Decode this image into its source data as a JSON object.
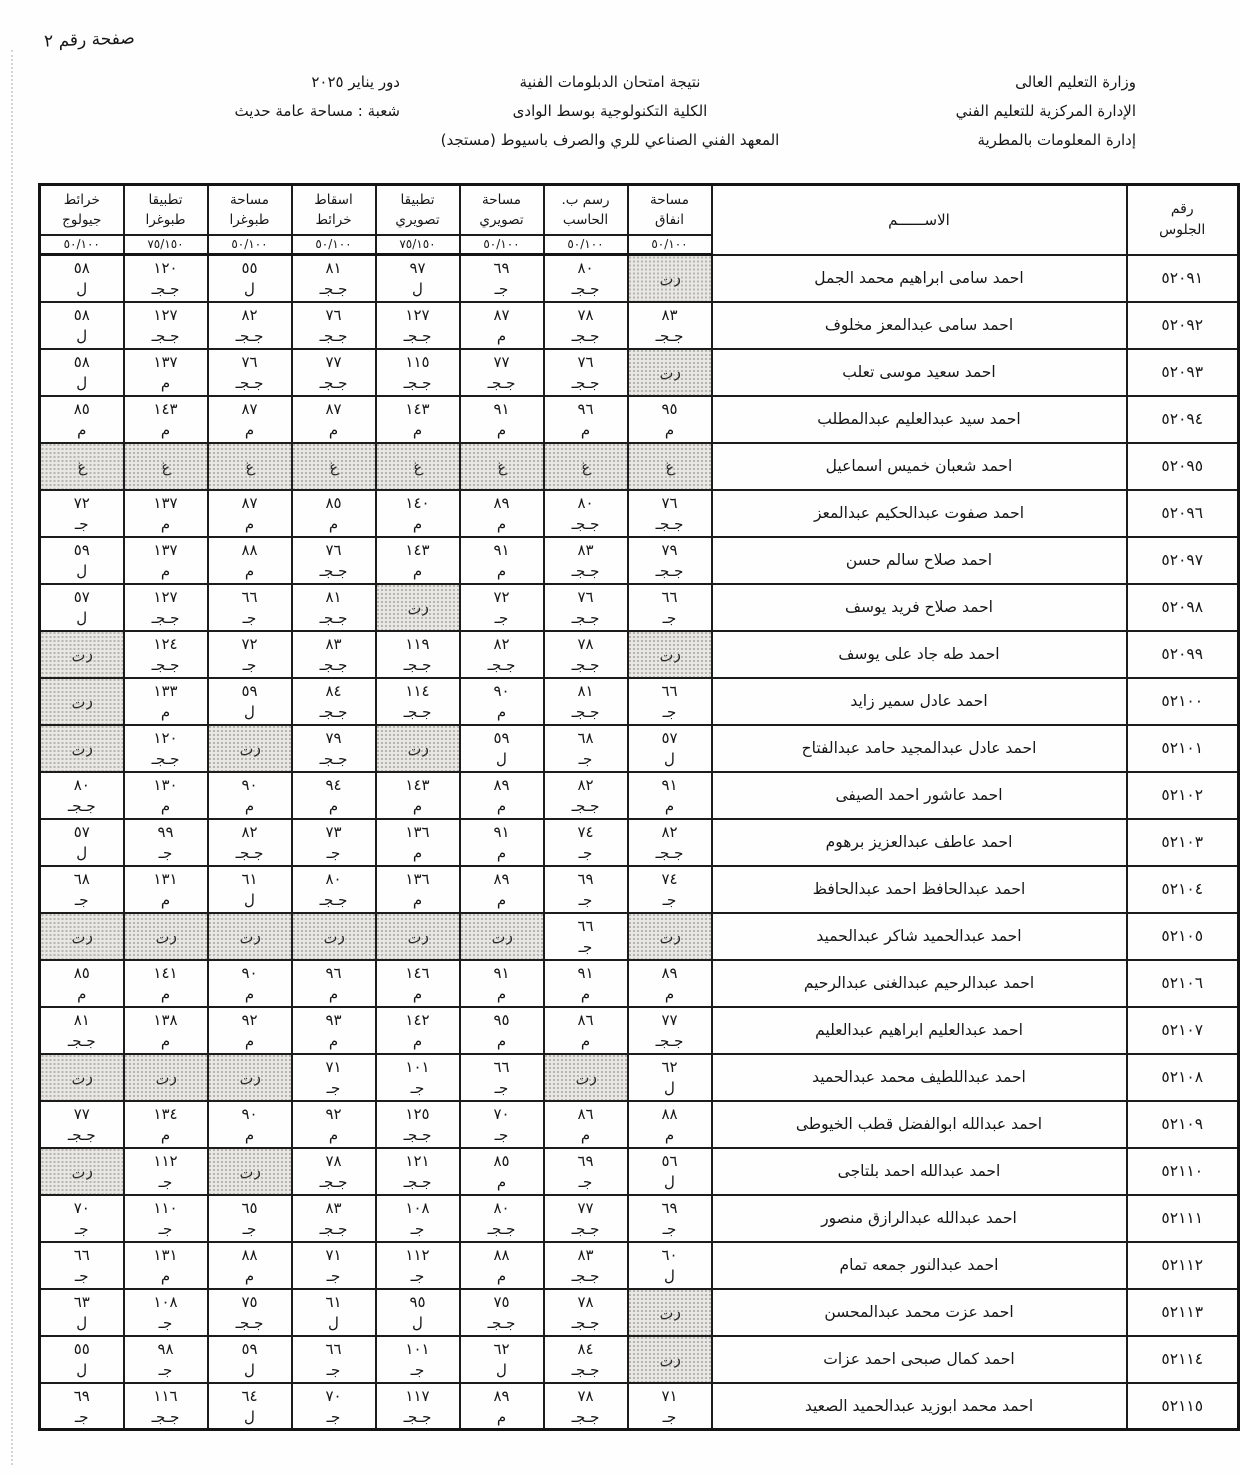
{
  "page_label": "صفحة رقم ٢",
  "header": {
    "right_lines": [
      "وزارة التعليم العالى",
      "الإدارة المركزية للتعليم الفني",
      "إدارة المعلومات بالمطرية"
    ],
    "center_lines": [
      "نتيجة امتحان الدبلومات الفنية",
      "الكلية التكنولوجية بوسط الوادى",
      "المعهد الفني الصناعي للري والصرف باسيوط  (مستجد)"
    ],
    "session_label": "دور يناير ٢٠٢٥",
    "division_label": "شعبة :  مساحة عامة حديث"
  },
  "table": {
    "seat_header_line1": "رقم",
    "seat_header_line2": "الجلوس",
    "name_header": "الاســــــم",
    "legend": {
      "absent_code": "غ",
      "retake_code": "رت"
    },
    "subjects": [
      {
        "name_line1": "مساحة",
        "name_line2": "انفاق",
        "max": "٥٠/١٠٠"
      },
      {
        "name_line1": "رسم ب.",
        "name_line2": "الحاسب",
        "max": "٥٠/١٠٠"
      },
      {
        "name_line1": "مساحة",
        "name_line2": "تصويري",
        "max": "٥٠/١٠٠"
      },
      {
        "name_line1": "تطبيقا",
        "name_line2": "تصويري",
        "max": "٧٥/١٥٠"
      },
      {
        "name_line1": "اسقاط",
        "name_line2": "خرائط",
        "max": "٥٠/١٠٠"
      },
      {
        "name_line1": "مساحة",
        "name_line2": "طبوغرا",
        "max": "٥٠/١٠٠"
      },
      {
        "name_line1": "تطبيقا",
        "name_line2": "طبوغرا",
        "max": "٧٥/١٥٠"
      },
      {
        "name_line1": "خرائط",
        "name_line2": "جيولوج",
        "max": "٥٠/١٠٠"
      }
    ],
    "rows": [
      {
        "seat": "٥٢٠٩١",
        "name": "احمد سامى ابراهيم محمد الجمل",
        "grades": [
          {
            "status": "رت"
          },
          {
            "score": "٨٠",
            "grade": "جـجـ"
          },
          {
            "score": "٦٩",
            "grade": "جـ"
          },
          {
            "score": "٩٧",
            "grade": "ل"
          },
          {
            "score": "٨١",
            "grade": "جـجـ"
          },
          {
            "score": "٥٥",
            "grade": "ل"
          },
          {
            "score": "١٢٠",
            "grade": "جـجـ"
          },
          {
            "score": "٥٨",
            "grade": "ل"
          }
        ]
      },
      {
        "seat": "٥٢٠٩٢",
        "name": "احمد سامى عبدالمعز مخلوف",
        "grades": [
          {
            "score": "٨٣",
            "grade": "جـجـ"
          },
          {
            "score": "٧٨",
            "grade": "جـجـ"
          },
          {
            "score": "٨٧",
            "grade": "م"
          },
          {
            "score": "١٢٧",
            "grade": "جـجـ"
          },
          {
            "score": "٧٦",
            "grade": "جـجـ"
          },
          {
            "score": "٨٢",
            "grade": "جـجـ"
          },
          {
            "score": "١٢٧",
            "grade": "جـجـ"
          },
          {
            "score": "٥٨",
            "grade": "ل"
          }
        ]
      },
      {
        "seat": "٥٢٠٩٣",
        "name": "احمد سعيد موسى تعلب",
        "grades": [
          {
            "status": "رت"
          },
          {
            "score": "٧٦",
            "grade": "جـجـ"
          },
          {
            "score": "٧٧",
            "grade": "جـجـ"
          },
          {
            "score": "١١٥",
            "grade": "جـجـ"
          },
          {
            "score": "٧٧",
            "grade": "جـجـ"
          },
          {
            "score": "٧٦",
            "grade": "جـجـ"
          },
          {
            "score": "١٣٧",
            "grade": "م"
          },
          {
            "score": "٥٨",
            "grade": "ل"
          }
        ]
      },
      {
        "seat": "٥٢٠٩٤",
        "name": "احمد سيد عبدالعليم عبدالمطلب",
        "grades": [
          {
            "score": "٩٥",
            "grade": "م"
          },
          {
            "score": "٩٦",
            "grade": "م"
          },
          {
            "score": "٩١",
            "grade": "م"
          },
          {
            "score": "١٤٣",
            "grade": "م"
          },
          {
            "score": "٨٧",
            "grade": "م"
          },
          {
            "score": "٨٧",
            "grade": "م"
          },
          {
            "score": "١٤٣",
            "grade": "م"
          },
          {
            "score": "٨٥",
            "grade": "م"
          }
        ]
      },
      {
        "seat": "٥٢٠٩٥",
        "name": "احمد شعبان خميس اسماعيل",
        "grades": [
          {
            "status": "غ"
          },
          {
            "status": "غ"
          },
          {
            "status": "غ"
          },
          {
            "status": "غ"
          },
          {
            "status": "غ"
          },
          {
            "status": "غ"
          },
          {
            "status": "غ"
          },
          {
            "status": "غ"
          }
        ]
      },
      {
        "seat": "٥٢٠٩٦",
        "name": "احمد صفوت عبدالحكيم عبدالمعز",
        "grades": [
          {
            "score": "٧٦",
            "grade": "جـجـ"
          },
          {
            "score": "٨٠",
            "grade": "جـجـ"
          },
          {
            "score": "٨٩",
            "grade": "م"
          },
          {
            "score": "١٤٠",
            "grade": "م"
          },
          {
            "score": "٨٥",
            "grade": "م"
          },
          {
            "score": "٨٧",
            "grade": "م"
          },
          {
            "score": "١٣٧",
            "grade": "م"
          },
          {
            "score": "٧٢",
            "grade": "جـ"
          }
        ]
      },
      {
        "seat": "٥٢٠٩٧",
        "name": "احمد صلاح سالم حسن",
        "grades": [
          {
            "score": "٧٩",
            "grade": "جـجـ"
          },
          {
            "score": "٨٣",
            "grade": "جـجـ"
          },
          {
            "score": "٩١",
            "grade": "م"
          },
          {
            "score": "١٤٣",
            "grade": "م"
          },
          {
            "score": "٧٦",
            "grade": "جـجـ"
          },
          {
            "score": "٨٨",
            "grade": "م"
          },
          {
            "score": "١٣٧",
            "grade": "م"
          },
          {
            "score": "٥٩",
            "grade": "ل"
          }
        ]
      },
      {
        "seat": "٥٢٠٩٨",
        "name": "احمد صلاح فريد يوسف",
        "grades": [
          {
            "score": "٦٦",
            "grade": "جـ"
          },
          {
            "score": "٧٦",
            "grade": "جـجـ"
          },
          {
            "score": "٧٢",
            "grade": "جـ"
          },
          {
            "status": "رت"
          },
          {
            "score": "٨١",
            "grade": "جـجـ"
          },
          {
            "score": "٦٦",
            "grade": "جـ"
          },
          {
            "score": "١٢٧",
            "grade": "جـجـ"
          },
          {
            "score": "٥٧",
            "grade": "ل"
          }
        ]
      },
      {
        "seat": "٥٢٠٩٩",
        "name": "احمد طه جاد على يوسف",
        "grades": [
          {
            "status": "رت"
          },
          {
            "score": "٧٨",
            "grade": "جـجـ"
          },
          {
            "score": "٨٢",
            "grade": "جـجـ"
          },
          {
            "score": "١١٩",
            "grade": "جـجـ"
          },
          {
            "score": "٨٣",
            "grade": "جـجـ"
          },
          {
            "score": "٧٢",
            "grade": "جـ"
          },
          {
            "score": "١٢٤",
            "grade": "جـجـ"
          },
          {
            "status": "رت"
          }
        ]
      },
      {
        "seat": "٥٢١٠٠",
        "name": "احمد عادل سمير زايد",
        "grades": [
          {
            "score": "٦٦",
            "grade": "جـ"
          },
          {
            "score": "٨١",
            "grade": "جـجـ"
          },
          {
            "score": "٩٠",
            "grade": "م"
          },
          {
            "score": "١١٤",
            "grade": "جـجـ"
          },
          {
            "score": "٨٤",
            "grade": "جـجـ"
          },
          {
            "score": "٥٩",
            "grade": "ل"
          },
          {
            "score": "١٣٣",
            "grade": "م"
          },
          {
            "status": "رت"
          }
        ]
      },
      {
        "seat": "٥٢١٠١",
        "name": "احمد عادل عبدالمجيد حامد عبدالفتاح",
        "grades": [
          {
            "score": "٥٧",
            "grade": "ل"
          },
          {
            "score": "٦٨",
            "grade": "جـ"
          },
          {
            "score": "٥٩",
            "grade": "ل"
          },
          {
            "status": "رت"
          },
          {
            "score": "٧٩",
            "grade": "جـجـ"
          },
          {
            "status": "رت"
          },
          {
            "score": "١٢٠",
            "grade": "جـجـ"
          },
          {
            "status": "رت"
          }
        ]
      },
      {
        "seat": "٥٢١٠٢",
        "name": "احمد عاشور احمد الصيفى",
        "grades": [
          {
            "score": "٩١",
            "grade": "م"
          },
          {
            "score": "٨٢",
            "grade": "جـجـ"
          },
          {
            "score": "٨٩",
            "grade": "م"
          },
          {
            "score": "١٤٣",
            "grade": "م"
          },
          {
            "score": "٩٤",
            "grade": "م"
          },
          {
            "score": "٩٠",
            "grade": "م"
          },
          {
            "score": "١٣٠",
            "grade": "م"
          },
          {
            "score": "٨٠",
            "grade": "جـجـ"
          }
        ]
      },
      {
        "seat": "٥٢١٠٣",
        "name": "احمد عاطف عبدالعزيز برهوم",
        "grades": [
          {
            "score": "٨٢",
            "grade": "جـجـ"
          },
          {
            "score": "٧٤",
            "grade": "جـ"
          },
          {
            "score": "٩١",
            "grade": "م"
          },
          {
            "score": "١٣٦",
            "grade": "م"
          },
          {
            "score": "٧٣",
            "grade": "جـ"
          },
          {
            "score": "٨٢",
            "grade": "جـجـ"
          },
          {
            "score": "٩٩",
            "grade": "جـ"
          },
          {
            "score": "٥٧",
            "grade": "ل"
          }
        ]
      },
      {
        "seat": "٥٢١٠٤",
        "name": "احمد عبدالحافظ احمد عبدالحافظ",
        "grades": [
          {
            "score": "٧٤",
            "grade": "جـ"
          },
          {
            "score": "٦٩",
            "grade": "جـ"
          },
          {
            "score": "٨٩",
            "grade": "م"
          },
          {
            "score": "١٣٦",
            "grade": "م"
          },
          {
            "score": "٨٠",
            "grade": "جـجـ"
          },
          {
            "score": "٦١",
            "grade": "ل"
          },
          {
            "score": "١٣١",
            "grade": "م"
          },
          {
            "score": "٦٨",
            "grade": "جـ"
          }
        ]
      },
      {
        "seat": "٥٢١٠٥",
        "name": "احمد عبدالحميد شاكر عبدالحميد",
        "grades": [
          {
            "status": "رت"
          },
          {
            "score": "٦٦",
            "grade": "جـ"
          },
          {
            "status": "رت"
          },
          {
            "status": "رت"
          },
          {
            "status": "رت"
          },
          {
            "status": "رت"
          },
          {
            "status": "رت"
          },
          {
            "status": "رت"
          }
        ]
      },
      {
        "seat": "٥٢١٠٦",
        "name": "احمد عبدالرحيم عبدالغنى عبدالرحيم",
        "grades": [
          {
            "score": "٨٩",
            "grade": "م"
          },
          {
            "score": "٩١",
            "grade": "م"
          },
          {
            "score": "٩١",
            "grade": "م"
          },
          {
            "score": "١٤٦",
            "grade": "م"
          },
          {
            "score": "٩٦",
            "grade": "م"
          },
          {
            "score": "٩٠",
            "grade": "م"
          },
          {
            "score": "١٤١",
            "grade": "م"
          },
          {
            "score": "٨٥",
            "grade": "م"
          }
        ]
      },
      {
        "seat": "٥٢١٠٧",
        "name": "احمد عبدالعليم ابراهيم عبدالعليم",
        "grades": [
          {
            "score": "٧٧",
            "grade": "جـجـ"
          },
          {
            "score": "٨٦",
            "grade": "م"
          },
          {
            "score": "٩٥",
            "grade": "م"
          },
          {
            "score": "١٤٢",
            "grade": "م"
          },
          {
            "score": "٩٣",
            "grade": "م"
          },
          {
            "score": "٩٢",
            "grade": "م"
          },
          {
            "score": "١٣٨",
            "grade": "م"
          },
          {
            "score": "٨١",
            "grade": "جـجـ"
          }
        ]
      },
      {
        "seat": "٥٢١٠٨",
        "name": "احمد عبداللطيف محمد عبدالحميد",
        "grades": [
          {
            "score": "٦٢",
            "grade": "ل"
          },
          {
            "status": "رت"
          },
          {
            "score": "٦٦",
            "grade": "جـ"
          },
          {
            "score": "١٠١",
            "grade": "جـ"
          },
          {
            "score": "٧١",
            "grade": "جـ"
          },
          {
            "status": "رت"
          },
          {
            "status": "رت"
          },
          {
            "status": "رت"
          }
        ]
      },
      {
        "seat": "٥٢١٠٩",
        "name": "احمد عبدالله ابوالفضل قطب الخيوطى",
        "grades": [
          {
            "score": "٨٨",
            "grade": "م"
          },
          {
            "score": "٨٦",
            "grade": "م"
          },
          {
            "score": "٧٠",
            "grade": "جـ"
          },
          {
            "score": "١٢٥",
            "grade": "جـجـ"
          },
          {
            "score": "٩٢",
            "grade": "م"
          },
          {
            "score": "٩٠",
            "grade": "م"
          },
          {
            "score": "١٣٤",
            "grade": "م"
          },
          {
            "score": "٧٧",
            "grade": "جـجـ"
          }
        ]
      },
      {
        "seat": "٥٢١١٠",
        "name": "احمد عبدالله احمد بلتاجى",
        "grades": [
          {
            "score": "٥٦",
            "grade": "ل"
          },
          {
            "score": "٦٩",
            "grade": "جـ"
          },
          {
            "score": "٨٥",
            "grade": "م"
          },
          {
            "score": "١٢١",
            "grade": "جـجـ"
          },
          {
            "score": "٧٨",
            "grade": "جـجـ"
          },
          {
            "status": "رت"
          },
          {
            "score": "١١٢",
            "grade": "جـ"
          },
          {
            "status": "رت"
          }
        ]
      },
      {
        "seat": "٥٢١١١",
        "name": "احمد عبدالله عبدالرازق منصور",
        "grades": [
          {
            "score": "٦٩",
            "grade": "جـ"
          },
          {
            "score": "٧٧",
            "grade": "جـجـ"
          },
          {
            "score": "٨٠",
            "grade": "جـجـ"
          },
          {
            "score": "١٠٨",
            "grade": "جـ"
          },
          {
            "score": "٨٣",
            "grade": "جـجـ"
          },
          {
            "score": "٦٥",
            "grade": "جـ"
          },
          {
            "score": "١١٠",
            "grade": "جـ"
          },
          {
            "score": "٧٠",
            "grade": "جـ"
          }
        ]
      },
      {
        "seat": "٥٢١١٢",
        "name": "احمد عبدالنور جمعه تمام",
        "grades": [
          {
            "score": "٦٠",
            "grade": "ل"
          },
          {
            "score": "٨٣",
            "grade": "جـجـ"
          },
          {
            "score": "٨٨",
            "grade": "م"
          },
          {
            "score": "١١٢",
            "grade": "جـ"
          },
          {
            "score": "٧١",
            "grade": "جـ"
          },
          {
            "score": "٨٨",
            "grade": "م"
          },
          {
            "score": "١٣١",
            "grade": "م"
          },
          {
            "score": "٦٦",
            "grade": "جـ"
          }
        ]
      },
      {
        "seat": "٥٢١١٣",
        "name": "احمد عزت محمد عبدالمحسن",
        "grades": [
          {
            "status": "رت"
          },
          {
            "score": "٧٨",
            "grade": "جـجـ"
          },
          {
            "score": "٧٥",
            "grade": "جـجـ"
          },
          {
            "score": "٩٥",
            "grade": "ل"
          },
          {
            "score": "٦١",
            "grade": "ل"
          },
          {
            "score": "٧٥",
            "grade": "جـجـ"
          },
          {
            "score": "١٠٨",
            "grade": "جـ"
          },
          {
            "score": "٦٣",
            "grade": "ل"
          }
        ]
      },
      {
        "seat": "٥٢١١٤",
        "name": "احمد كمال صبحى احمد عزات",
        "grades": [
          {
            "status": "رت"
          },
          {
            "score": "٨٤",
            "grade": "جـجـ"
          },
          {
            "score": "٦٢",
            "grade": "ل"
          },
          {
            "score": "١٠١",
            "grade": "جـ"
          },
          {
            "score": "٦٦",
            "grade": "جـ"
          },
          {
            "score": "٥٩",
            "grade": "ل"
          },
          {
            "score": "٩٨",
            "grade": "جـ"
          },
          {
            "score": "٥٥",
            "grade": "ل"
          }
        ]
      },
      {
        "seat": "٥٢١١٥",
        "name": "احمد محمد ابوزيد عبدالحميد الصعيد",
        "grades": [
          {
            "score": "٧١",
            "grade": "جـ"
          },
          {
            "score": "٧٨",
            "grade": "جـجـ"
          },
          {
            "score": "٨٩",
            "grade": "م"
          },
          {
            "score": "١١٧",
            "grade": "جـجـ"
          },
          {
            "score": "٧٠",
            "grade": "جـ"
          },
          {
            "score": "٦٤",
            "grade": "ل"
          },
          {
            "score": "١١٦",
            "grade": "جـجـ"
          },
          {
            "score": "٦٩",
            "grade": "جـ"
          }
        ]
      }
    ]
  }
}
